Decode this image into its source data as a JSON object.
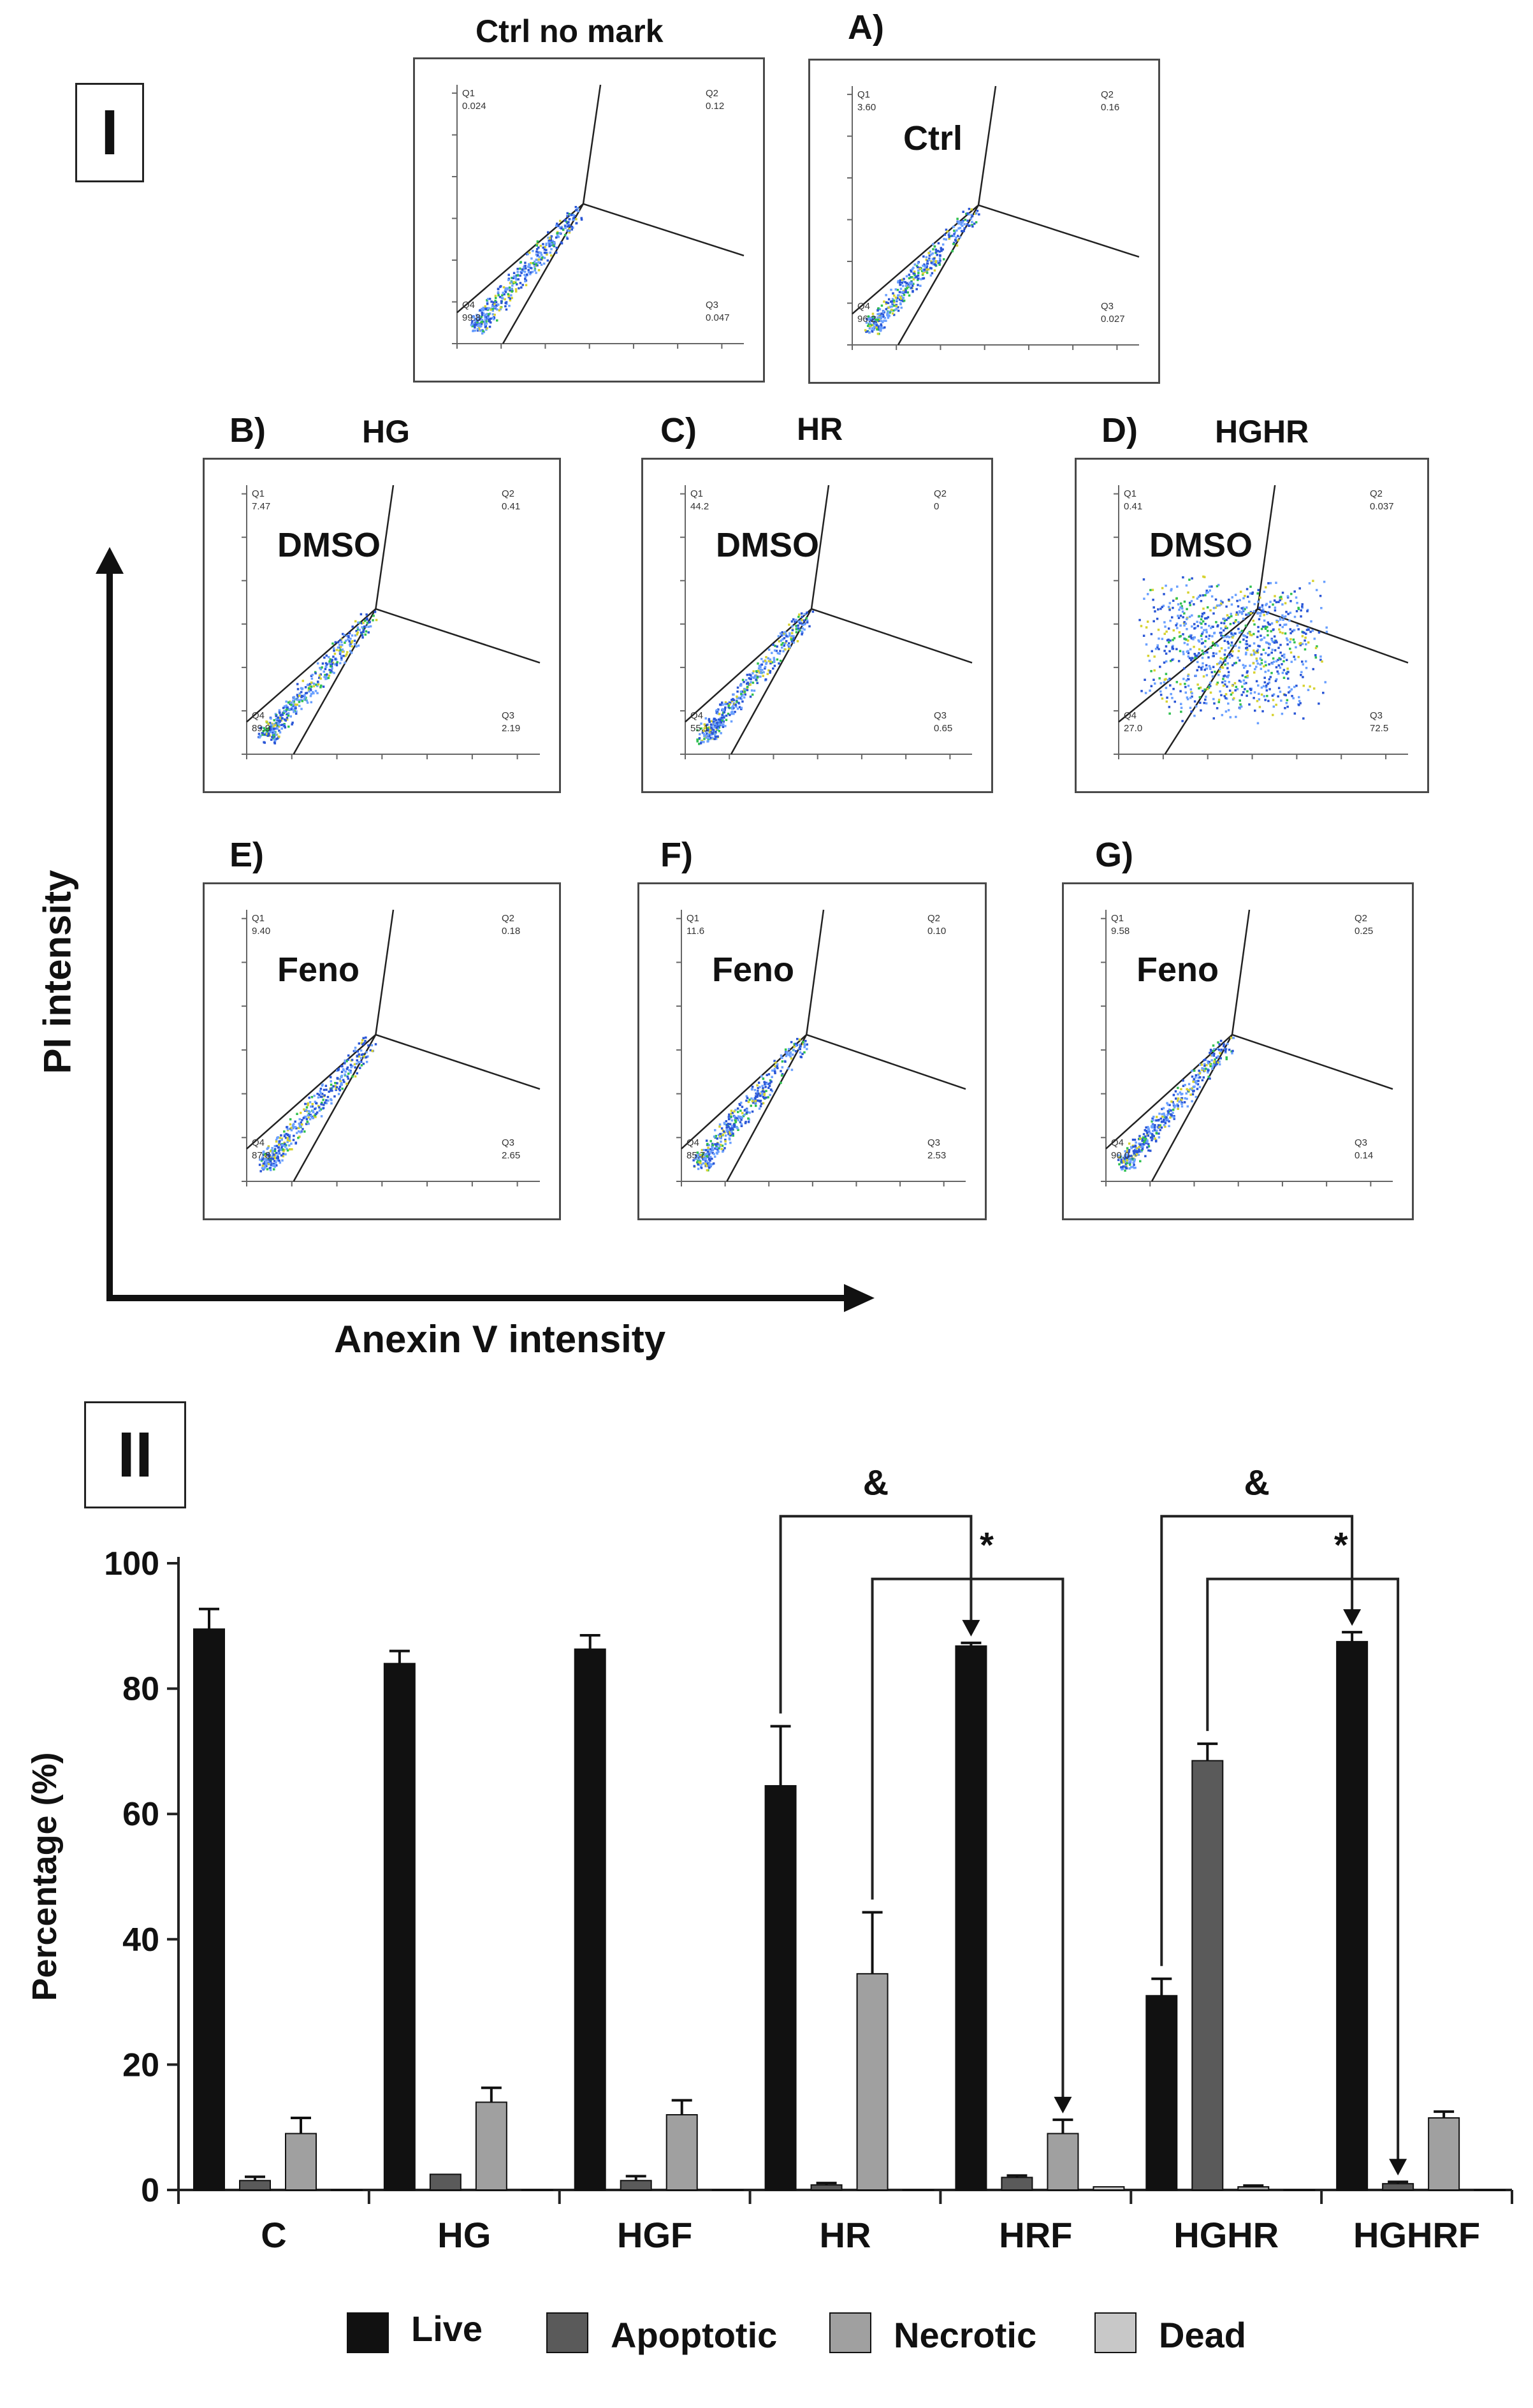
{
  "part1": {
    "label": "I",
    "y_axis_label": "PI intensity",
    "x_axis_label": "Anexin V intensity",
    "panels": [
      {
        "letter": "",
        "title": "Ctrl no mark",
        "inner_label": "",
        "q1": "0.024",
        "q2": "0.12",
        "q3": "0.047",
        "q4": "99.8"
      },
      {
        "letter": "A)",
        "title": "",
        "inner_label": "Ctrl",
        "q1": "3.60",
        "q2": "0.16",
        "q3": "0.027",
        "q4": "96.2"
      },
      {
        "letter": "B)",
        "title": "HG",
        "inner_label": "DMSO",
        "q1": "7.47",
        "q2": "0.41",
        "q3": "2.19",
        "q4": "89.9"
      },
      {
        "letter": "C)",
        "title": "HR",
        "inner_label": "DMSO",
        "q1": "44.2",
        "q2": "0",
        "q3": "0.65",
        "q4": "55.1"
      },
      {
        "letter": "D)",
        "title": "HGHR",
        "inner_label": "DMSO",
        "q1": "0.41",
        "q2": "0.037",
        "q3": "72.5",
        "q4": "27.0"
      },
      {
        "letter": "E)",
        "title": "",
        "inner_label": "Feno",
        "q1": "9.40",
        "q2": "0.18",
        "q3": "2.65",
        "q4": "87.8"
      },
      {
        "letter": "F)",
        "title": "",
        "inner_label": "Feno",
        "q1": "11.6",
        "q2": "0.10",
        "q3": "2.53",
        "q4": "85.7"
      },
      {
        "letter": "G)",
        "title": "",
        "inner_label": "Feno",
        "q1": "9.58",
        "q2": "0.25",
        "q3": "0.14",
        "q4": "90.0"
      }
    ],
    "quadrant_names": {
      "q1": "Q1",
      "q2": "Q2",
      "q3": "Q3",
      "q4": "Q4"
    }
  },
  "part2": {
    "label": "II"
  },
  "chart_data": {
    "type": "bar",
    "ylabel": "Percentage (%)",
    "xlabel": "",
    "ylim": [
      0,
      100
    ],
    "yticks": [
      0,
      20,
      40,
      60,
      80,
      100
    ],
    "categories": [
      "C",
      "HG",
      "HGF",
      "HR",
      "HRF",
      "HGHR",
      "HGHRF"
    ],
    "series": [
      {
        "name": "Live",
        "color": "#111111",
        "values": [
          89.5,
          84,
          86.3,
          64.5,
          86.8,
          31,
          87.5
        ],
        "errors": [
          3.2,
          2,
          2.2,
          9.5,
          0.5,
          2.7,
          1.5
        ]
      },
      {
        "name": "Apoptotic",
        "color": "#5a5a5a",
        "values": [
          1.5,
          2.5,
          1.5,
          0.8,
          2,
          68.5,
          1
        ],
        "errors": [
          0.6,
          0,
          0.7,
          0.3,
          0.3,
          2.7,
          0.3
        ]
      },
      {
        "name": "Necrotic",
        "color": "#a0a0a0",
        "values": [
          9,
          14,
          12,
          34.5,
          9,
          0.5,
          11.5
        ],
        "errors": [
          2.5,
          2.3,
          2.3,
          9.8,
          2.2,
          0.2,
          1
        ]
      },
      {
        "name": "Dead",
        "color": "#c8c8c8",
        "values": [
          0,
          0,
          0,
          0,
          0.5,
          0,
          0
        ],
        "errors": [
          0,
          0,
          0,
          0,
          0,
          0,
          0
        ]
      }
    ],
    "significance": [
      {
        "symbol": "&",
        "from": "HR",
        "to": "HRF"
      },
      {
        "symbol": "*",
        "from": "HR",
        "to": "HRF"
      },
      {
        "symbol": "&",
        "from": "HGHR",
        "to": "HGHRF"
      },
      {
        "symbol": "*",
        "from": "HGHR",
        "to": "HGHRF"
      }
    ]
  }
}
